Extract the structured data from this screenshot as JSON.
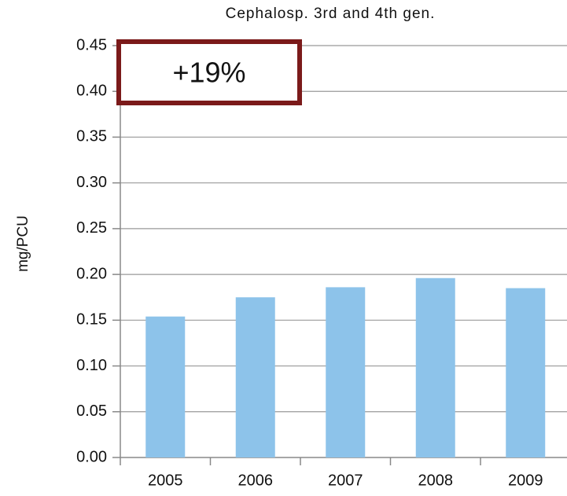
{
  "chart_data": {
    "type": "bar",
    "title": "Cephalosp. 3rd and 4th gen.",
    "y_label": "mg/PCU",
    "annotation": "+19%",
    "categories": [
      "2005",
      "2006",
      "2007",
      "2008",
      "2009"
    ],
    "values": [
      0.154,
      0.175,
      0.186,
      0.196,
      0.185
    ],
    "color": "#8dc3ea",
    "ylim": [
      0,
      0.45
    ],
    "yticks": [
      {
        "value": 0,
        "label": "0.00"
      },
      0.05,
      {
        "value": 0.1,
        "label": "0.10"
      },
      0.15,
      {
        "value": 0.2,
        "label": "0.20"
      },
      0.25,
      {
        "value": 0.3,
        "label": "0.30"
      },
      0.35,
      {
        "value": 0.4,
        "label": "0.40"
      },
      0.45
    ],
    "grid": true
  }
}
